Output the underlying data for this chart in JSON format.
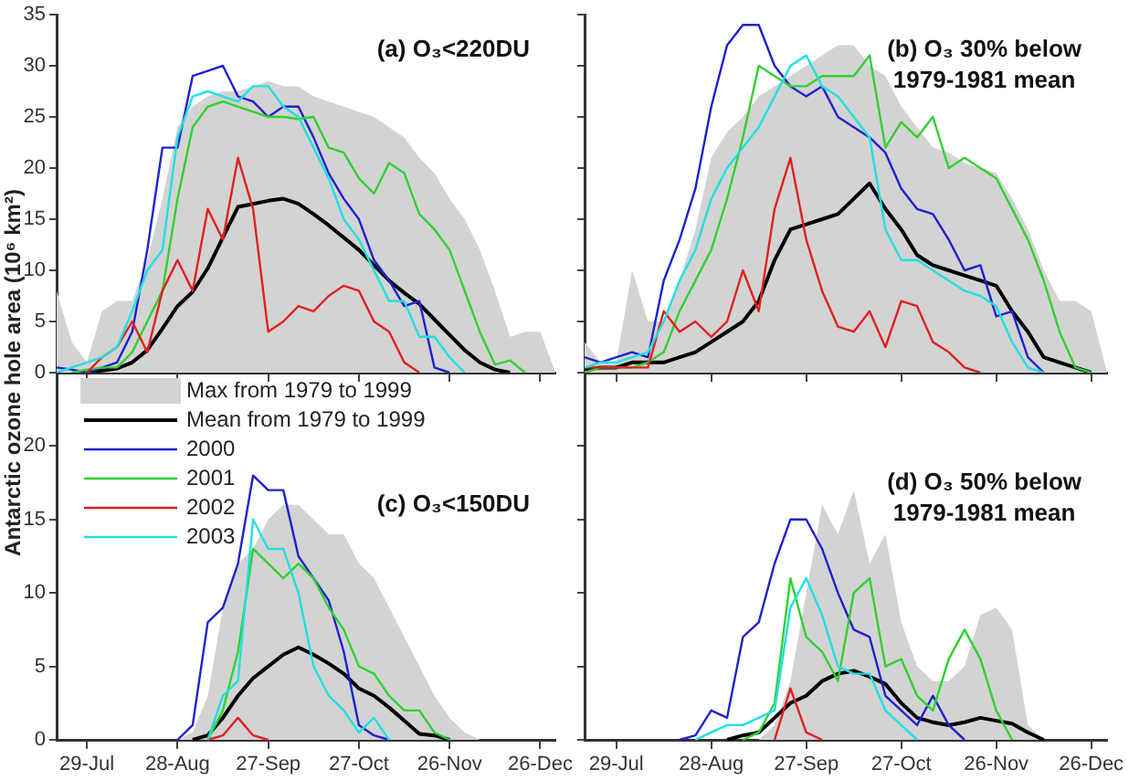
{
  "chart_data": [
    {
      "type": "line",
      "title": "(a) O₃<220DU",
      "ylabel": "Antarctic ozone hole area (10⁶ km²)",
      "tick_labels": "y",
      "legend": false,
      "x": [
        "--07-19",
        "--07-24",
        "--07-29",
        "--08-03",
        "--08-08",
        "--08-13",
        "--08-18",
        "--08-23",
        "--08-28",
        "--09-02",
        "--09-07",
        "--09-12",
        "--09-17",
        "--09-22",
        "--09-27",
        "--10-02",
        "--10-07",
        "--10-12",
        "--10-17",
        "--10-22",
        "--10-27",
        "--11-01",
        "--11-06",
        "--11-11",
        "--11-16",
        "--11-21",
        "--11-26",
        "--12-01",
        "--12-06",
        "--12-11",
        "--12-16",
        "--12-21",
        "--12-26",
        "--12-31"
      ],
      "xlim": [
        "--07-19",
        "--12-31"
      ],
      "xticks": [
        {
          "value": "--07-29",
          "label": null
        },
        {
          "value": "--08-28",
          "label": null
        },
        {
          "value": "--09-27",
          "label": null
        },
        {
          "value": "--10-27",
          "label": null
        },
        {
          "value": "--11-26",
          "label": null
        },
        {
          "value": "--12-26",
          "label": null
        }
      ],
      "ylim": [
        0,
        35
      ],
      "yticks": [
        0,
        5,
        10,
        15,
        20,
        25,
        30,
        35
      ],
      "series": [
        {
          "type": "area",
          "color": "#d3d3d3",
          "values": [
            8,
            3,
            1,
            6,
            7,
            7,
            11,
            17,
            24,
            26,
            27,
            27.5,
            27.5,
            28,
            28.5,
            28,
            28,
            27,
            26.5,
            26,
            25.5,
            25,
            24,
            23,
            21,
            19.5,
            17,
            15,
            12,
            8,
            3.5,
            4,
            4,
            0
          ]
        },
        {
          "type": "line",
          "color": "#000000",
          "values": [
            null,
            null,
            0,
            0.2,
            0.4,
            1,
            2.2,
            4.3,
            6.5,
            7.9,
            10.2,
            13.2,
            16.2,
            16.5,
            16.8,
            17,
            16.5,
            15.5,
            14.4,
            13.2,
            12,
            10.5,
            9,
            7.8,
            6.7,
            5.2,
            3.7,
            2.2,
            1,
            0.3,
            0,
            null,
            null,
            null
          ]
        },
        {
          "type": "line",
          "color": "#2020d0",
          "values": [
            0.5,
            0.3,
            0,
            0.5,
            1,
            4,
            12,
            22,
            22,
            29,
            29.5,
            30,
            27,
            26.5,
            25,
            26,
            26,
            23,
            19.5,
            17,
            15,
            11,
            9,
            6.5,
            7,
            0.5,
            0,
            null,
            null,
            null,
            null,
            null,
            null,
            null
          ]
        },
        {
          "type": "line",
          "color": "#30d030",
          "values": [
            null,
            0,
            0.3,
            0.5,
            0.5,
            2,
            5,
            8,
            17,
            24,
            26,
            26.5,
            26,
            25.5,
            25,
            25,
            24.8,
            25,
            22,
            21.5,
            19,
            17.5,
            20.5,
            19.5,
            15.5,
            14,
            12,
            8,
            4,
            0.8,
            1.2,
            0,
            null,
            null
          ]
        },
        {
          "type": "line",
          "color": "#e02020",
          "values": [
            null,
            null,
            0,
            1.5,
            2.5,
            5,
            2,
            8,
            11,
            8,
            16,
            13,
            21,
            16,
            4,
            5,
            6.5,
            6,
            7.5,
            8.5,
            8,
            5,
            4,
            1,
            0,
            null,
            null,
            null,
            null,
            null,
            null,
            null,
            null,
            null
          ]
        },
        {
          "type": "line",
          "color": "#20e0e0",
          "values": [
            0,
            0.5,
            1,
            1.5,
            2.5,
            6,
            10,
            12,
            23,
            27,
            27.5,
            27,
            26.5,
            28,
            28,
            26,
            25,
            22,
            19,
            15,
            13,
            10,
            7,
            7,
            3.5,
            3.5,
            1.5,
            0,
            null,
            null,
            null,
            null,
            null,
            null
          ]
        }
      ]
    },
    {
      "type": "line",
      "title": "(b) O₃ 30% below\n1979-1981 mean",
      "tick_labels": false,
      "legend": false,
      "x": [
        "--07-19",
        "--07-24",
        "--07-29",
        "--08-03",
        "--08-08",
        "--08-13",
        "--08-18",
        "--08-23",
        "--08-28",
        "--09-02",
        "--09-07",
        "--09-12",
        "--09-17",
        "--09-22",
        "--09-27",
        "--10-02",
        "--10-07",
        "--10-12",
        "--10-17",
        "--10-22",
        "--10-27",
        "--11-01",
        "--11-06",
        "--11-11",
        "--11-16",
        "--11-21",
        "--11-26",
        "--12-01",
        "--12-06",
        "--12-11",
        "--12-16",
        "--12-21",
        "--12-26",
        "--12-31"
      ],
      "xlim": [
        "--07-19",
        "--12-31"
      ],
      "xticks": [
        {
          "value": "--07-29",
          "label": null
        },
        {
          "value": "--08-28",
          "label": null
        },
        {
          "value": "--09-27",
          "label": null
        },
        {
          "value": "--10-27",
          "label": null
        },
        {
          "value": "--11-26",
          "label": null
        },
        {
          "value": "--12-26",
          "label": null
        }
      ],
      "ylim": [
        0,
        35
      ],
      "yticks": [
        {
          "value": 0,
          "label": null
        },
        {
          "value": 5,
          "label": null
        },
        {
          "value": 10,
          "label": null
        },
        {
          "value": 15,
          "label": null
        },
        {
          "value": 20,
          "label": null
        },
        {
          "value": 25,
          "label": null
        },
        {
          "value": 30,
          "label": null
        },
        {
          "value": 35,
          "label": null
        }
      ],
      "series": [
        {
          "type": "area",
          "color": "#d3d3d3",
          "values": [
            3,
            1,
            1,
            10,
            5,
            5,
            9,
            14,
            21,
            23.5,
            25,
            27,
            28,
            29,
            30,
            31,
            32,
            32,
            30,
            29,
            26,
            24,
            22,
            21.5,
            20.5,
            20,
            19.5,
            17,
            14,
            10,
            7,
            7,
            6,
            0
          ]
        },
        {
          "type": "line",
          "color": "#000000",
          "values": [
            0.3,
            0.5,
            0.5,
            1,
            1,
            1,
            1.5,
            2,
            3,
            4,
            5,
            7,
            11,
            14,
            14.5,
            15,
            15.5,
            17,
            18.5,
            16,
            14,
            11.5,
            10.5,
            10,
            9.5,
            9,
            8.5,
            6,
            4,
            1.5,
            1,
            0.5,
            0,
            null
          ]
        },
        {
          "type": "line",
          "color": "#2020d0",
          "values": [
            1.5,
            1,
            1.5,
            2,
            1.5,
            9,
            13,
            18,
            26,
            32,
            34,
            34,
            30,
            28,
            27,
            28,
            25,
            24,
            23,
            21.5,
            18,
            16,
            15.5,
            13,
            10,
            10.5,
            5.5,
            6,
            1.5,
            0,
            null,
            null,
            null,
            null
          ]
        },
        {
          "type": "line",
          "color": "#30d030",
          "values": [
            0,
            0.5,
            0.5,
            0.5,
            1,
            2,
            6,
            9,
            12,
            17,
            23,
            30,
            29,
            28,
            28,
            29,
            29,
            29,
            31,
            22,
            24.5,
            23,
            25,
            20,
            21,
            20,
            19,
            16,
            13,
            9,
            4,
            0.5,
            0,
            null
          ]
        },
        {
          "type": "line",
          "color": "#e02020",
          "values": [
            0.5,
            0.5,
            0.5,
            0.5,
            0.5,
            6,
            4,
            5,
            3.5,
            5,
            10,
            6,
            16,
            21,
            13,
            8,
            4.5,
            4,
            6,
            2.5,
            7,
            6.5,
            3,
            2,
            0.5,
            0,
            null,
            null,
            null,
            null,
            null,
            null,
            null,
            null
          ]
        },
        {
          "type": "line",
          "color": "#20e0e0",
          "values": [
            0.5,
            1,
            1,
            1.5,
            2,
            5,
            9,
            12,
            17,
            20,
            22,
            24,
            27,
            30,
            31,
            28,
            27,
            25,
            23,
            14,
            11,
            11,
            10,
            9,
            8,
            7.5,
            6.5,
            3,
            0.5,
            0,
            null,
            null,
            null,
            null
          ]
        }
      ]
    },
    {
      "type": "line",
      "title": "(c) O₃<150DU",
      "legend": "top left",
      "x": [
        "--07-19",
        "--07-24",
        "--07-29",
        "--08-03",
        "--08-08",
        "--08-13",
        "--08-18",
        "--08-23",
        "--08-28",
        "--09-02",
        "--09-07",
        "--09-12",
        "--09-17",
        "--09-22",
        "--09-27",
        "--10-02",
        "--10-07",
        "--10-12",
        "--10-17",
        "--10-22",
        "--10-27",
        "--11-01",
        "--11-06",
        "--11-11",
        "--11-16",
        "--11-21",
        "--11-26",
        "--12-01",
        "--12-06",
        "--12-11",
        "--12-16",
        "--12-21",
        "--12-26",
        "--12-31"
      ],
      "xlim": [
        "--07-19",
        "--12-31"
      ],
      "xticks": [
        {
          "value": "--07-29",
          "label": "29-Jul"
        },
        {
          "value": "--08-28",
          "label": "28-Aug"
        },
        {
          "value": "--09-27",
          "label": "27-Sep"
        },
        {
          "value": "--10-27",
          "label": "27-Oct"
        },
        {
          "value": "--11-26",
          "label": "26-Nov"
        },
        {
          "value": "--12-26",
          "label": "26-Dec"
        }
      ],
      "ylim": [
        0,
        25
      ],
      "yticks": [
        0,
        5,
        10,
        15,
        20
      ],
      "series": [
        {
          "type": "area",
          "name": "Max from 1979 to 1999",
          "color": "#d3d3d3",
          "values": [
            0,
            0,
            0,
            0,
            0,
            0,
            0,
            0,
            0,
            0.5,
            3,
            9,
            12,
            13,
            15,
            16,
            16,
            15,
            14,
            14,
            12,
            11,
            9,
            7,
            5,
            3,
            1.5,
            0.5,
            0,
            0,
            0,
            0,
            0,
            0
          ]
        },
        {
          "type": "line",
          "name": "Mean from 1979 to 1999",
          "color": "#000000",
          "values": [
            null,
            null,
            null,
            null,
            null,
            null,
            null,
            null,
            null,
            0,
            0.3,
            1.5,
            3,
            4.2,
            5,
            5.8,
            6.3,
            5.8,
            5.2,
            4.5,
            3.5,
            3,
            2.2,
            1.3,
            0.4,
            0.3,
            0,
            null,
            null,
            null,
            null,
            null,
            null,
            null
          ]
        },
        {
          "type": "line",
          "name": "2000",
          "color": "#2020d0",
          "values": [
            null,
            null,
            null,
            null,
            null,
            null,
            null,
            null,
            0,
            1,
            8,
            9,
            12,
            18,
            17,
            17,
            12.5,
            11,
            9.5,
            6,
            1,
            0.3,
            0,
            null,
            null,
            null,
            null,
            null,
            null,
            null,
            null,
            null,
            null,
            null
          ]
        },
        {
          "type": "line",
          "name": "2001",
          "color": "#30d030",
          "values": [
            null,
            null,
            null,
            null,
            null,
            null,
            null,
            null,
            null,
            null,
            0,
            2,
            6,
            13,
            12,
            11,
            12,
            11,
            9,
            7.5,
            5,
            4.5,
            3,
            2,
            2,
            0.5,
            0,
            null,
            null,
            null,
            null,
            null,
            null,
            null
          ]
        },
        {
          "type": "line",
          "name": "2002",
          "color": "#e02020",
          "values": [
            null,
            null,
            null,
            null,
            null,
            null,
            null,
            null,
            null,
            null,
            0,
            0.3,
            1.5,
            0.3,
            0,
            null,
            null,
            null,
            null,
            null,
            null,
            null,
            null,
            null,
            null,
            null,
            null,
            null,
            null,
            null,
            null,
            null,
            null,
            null
          ]
        },
        {
          "type": "line",
          "name": "2003",
          "color": "#20e0e0",
          "values": [
            null,
            null,
            null,
            null,
            null,
            null,
            null,
            null,
            null,
            null,
            0,
            3,
            4,
            15,
            13,
            13,
            10,
            5,
            3,
            2,
            0.5,
            1.5,
            0,
            null,
            null,
            null,
            null,
            null,
            null,
            null,
            null,
            null,
            null,
            null
          ]
        }
      ]
    },
    {
      "type": "line",
      "title": "(d) O₃ 50% below\n1979-1981 mean",
      "tick_labels": "x",
      "legend": false,
      "x": [
        "--07-19",
        "--07-24",
        "--07-29",
        "--08-03",
        "--08-08",
        "--08-13",
        "--08-18",
        "--08-23",
        "--08-28",
        "--09-02",
        "--09-07",
        "--09-12",
        "--09-17",
        "--09-22",
        "--09-27",
        "--10-02",
        "--10-07",
        "--10-12",
        "--10-17",
        "--10-22",
        "--10-27",
        "--11-01",
        "--11-06",
        "--11-11",
        "--11-16",
        "--11-21",
        "--11-26",
        "--12-01",
        "--12-06",
        "--12-11",
        "--12-16",
        "--12-21",
        "--12-26",
        "--12-31"
      ],
      "xlim": [
        "--07-19",
        "--12-31"
      ],
      "xticks": [
        {
          "value": "--07-29",
          "label": "29-Jul"
        },
        {
          "value": "--08-28",
          "label": "28-Aug"
        },
        {
          "value": "--09-27",
          "label": "27-Sep"
        },
        {
          "value": "--10-27",
          "label": "27-Oct"
        },
        {
          "value": "--11-26",
          "label": "26-Nov"
        },
        {
          "value": "--12-26",
          "label": "26-Dec"
        }
      ],
      "ylim": [
        0,
        25
      ],
      "yticks": [
        {
          "value": 0,
          "label": null
        },
        {
          "value": 5,
          "label": null
        },
        {
          "value": 10,
          "label": null
        },
        {
          "value": 15,
          "label": null
        },
        {
          "value": 20,
          "label": null
        }
      ],
      "series": [
        {
          "type": "area",
          "color": "#d3d3d3",
          "values": [
            0,
            0,
            0,
            0,
            0,
            0,
            0,
            0,
            0,
            0,
            0,
            0,
            1,
            4,
            10,
            16,
            14,
            17,
            12,
            14,
            8,
            5,
            4,
            4,
            5,
            8.5,
            9,
            7.5,
            1,
            0,
            0,
            0,
            0,
            0
          ]
        },
        {
          "type": "line",
          "color": "#000000",
          "values": [
            null,
            null,
            null,
            null,
            null,
            null,
            null,
            null,
            null,
            0,
            0.3,
            0.5,
            1.5,
            2.5,
            3,
            4,
            4.5,
            4.7,
            4.3,
            3.8,
            2.5,
            1.5,
            1.2,
            1,
            1.2,
            1.5,
            1.3,
            1.1,
            0.5,
            0,
            null,
            null,
            null,
            null
          ]
        },
        {
          "type": "line",
          "color": "#2020d0",
          "values": [
            null,
            null,
            null,
            null,
            null,
            null,
            0,
            0.3,
            2,
            1.5,
            7,
            8,
            12,
            15,
            15,
            13,
            10,
            7.5,
            7,
            3,
            2,
            1,
            3,
            1,
            0,
            null,
            null,
            null,
            null,
            null,
            null,
            null,
            null,
            null
          ]
        },
        {
          "type": "line",
          "color": "#30d030",
          "values": [
            null,
            null,
            null,
            null,
            null,
            null,
            null,
            null,
            null,
            null,
            0,
            0.5,
            2.5,
            11,
            7,
            6,
            4,
            10,
            11,
            5,
            5.5,
            3,
            2,
            5.5,
            7.5,
            5.5,
            2,
            0,
            null,
            null,
            null,
            null,
            null,
            null
          ]
        },
        {
          "type": "line",
          "color": "#e02020",
          "values": [
            null,
            null,
            null,
            null,
            null,
            null,
            null,
            null,
            null,
            null,
            null,
            null,
            0,
            3.5,
            0.5,
            0,
            null,
            null,
            null,
            null,
            null,
            null,
            null,
            null,
            null,
            null,
            null,
            null,
            null,
            null,
            null,
            null,
            null,
            null
          ]
        },
        {
          "type": "line",
          "color": "#20e0e0",
          "values": [
            null,
            null,
            null,
            null,
            null,
            null,
            null,
            0,
            0.5,
            1,
            1,
            1.5,
            2,
            9,
            11,
            8.5,
            5,
            4.5,
            4.5,
            2,
            1,
            0,
            null,
            null,
            null,
            null,
            null,
            null,
            null,
            null,
            null,
            null,
            null,
            null
          ]
        }
      ]
    }
  ]
}
